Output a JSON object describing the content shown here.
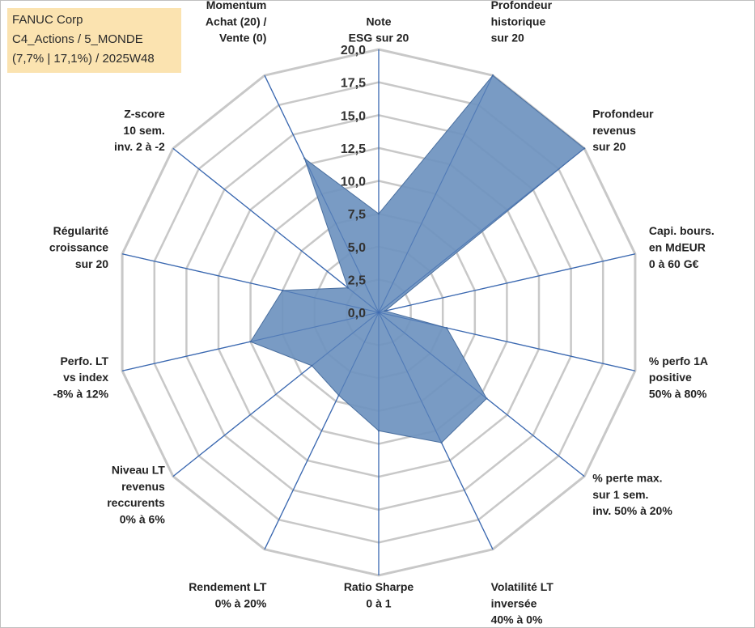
{
  "infobox": {
    "line1": "FANUC Corp",
    "line2": "C4_Actions / 5_MONDE",
    "line3": "(7,7% | 17,1%) / 2025W48"
  },
  "colors": {
    "fill": "#6f93c0",
    "stroke": "#4a6f9f",
    "spoke": "#3a68b0",
    "grid": "#c8c8c8"
  },
  "chart_data": {
    "type": "radar",
    "title": "",
    "rmin": 0,
    "rmax": 20,
    "ticks": [
      "0,0",
      "2,5",
      "5,0",
      "7,5",
      "10,0",
      "12,5",
      "15,0",
      "17,5",
      "20,0"
    ],
    "axes": [
      {
        "label": [
          "Note",
          "ESG sur 20"
        ],
        "value": 7.5
      },
      {
        "label": [
          "Profondeur",
          "historique",
          "sur 20"
        ],
        "value": 20
      },
      {
        "label": [
          "Profondeur",
          "revenus",
          "sur 20"
        ],
        "value": 20
      },
      {
        "label": [
          "Capi. bours.",
          "en MdEUR",
          "0 à 60 G€"
        ],
        "value": 0.5
      },
      {
        "label": [
          "% perfo 1A",
          "positive",
          "50% à 80%"
        ],
        "value": 5.3
      },
      {
        "label": [
          "% perte max.",
          "sur 1 sem.",
          "inv. 50% à 20%"
        ],
        "value": 10.5
      },
      {
        "label": [
          "Volatilité LT",
          "inversée",
          "40% à 0%"
        ],
        "value": 11
      },
      {
        "label": [
          "Ratio Sharpe",
          "0 à 1"
        ],
        "value": 9
      },
      {
        "label": [
          "Rendement LT",
          "0% à 20%"
        ],
        "value": 7
      },
      {
        "label": [
          "Niveau LT",
          "revenus",
          "reccurents",
          "0% à 6%"
        ],
        "value": 6.5
      },
      {
        "label": [
          "Perfo. LT",
          "vs index",
          "-8% à 12%"
        ],
        "value": 10
      },
      {
        "label": [
          "Régularité",
          "croissance",
          "sur 20"
        ],
        "value": 7.5
      },
      {
        "label": [
          "Z-score",
          "10 sem.",
          "inv. 2 à -2"
        ],
        "value": 3
      },
      {
        "label": [
          "Momentum",
          "Achat (20) /",
          "Vente (0)"
        ],
        "value": 13
      }
    ]
  }
}
